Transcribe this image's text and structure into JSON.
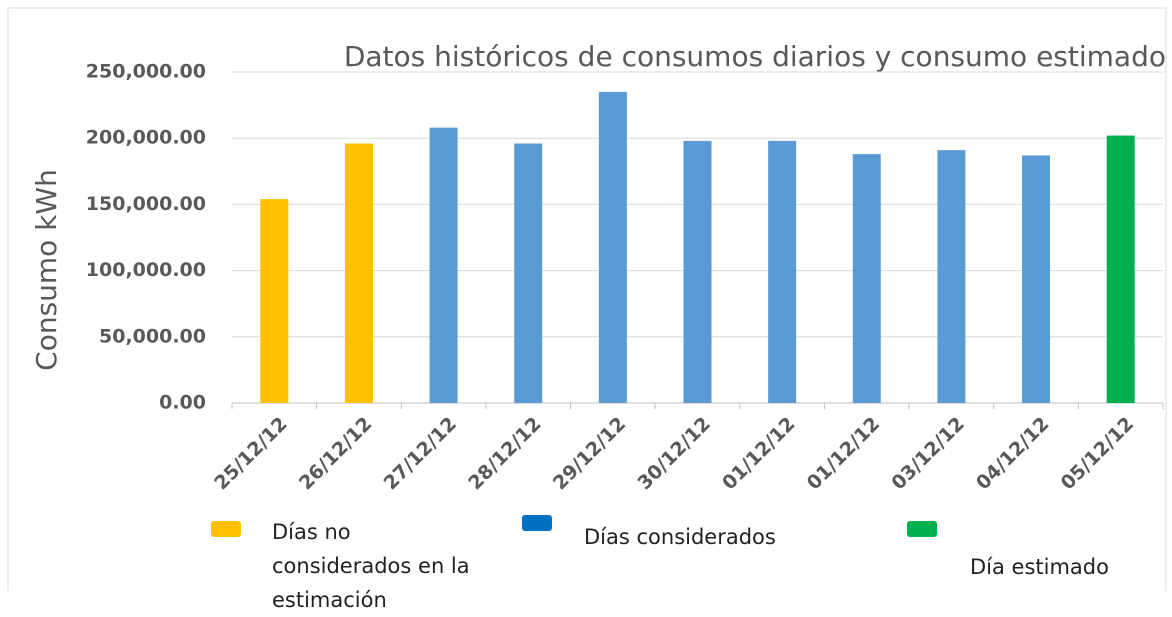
{
  "chart_data": {
    "type": "bar",
    "title": "Datos históricos de consumos diarios y consumo estimado",
    "ylabel": "Consumo  kWh",
    "categories": [
      "25/12/12",
      "26/12/12",
      "27/12/12",
      "28/12/12",
      "29/12/12",
      "30/12/12",
      "01/12/12",
      "01/12/12",
      "03/12/12",
      "04/12/12",
      "05/12/12"
    ],
    "series": [
      {
        "name": "Días no considerados en la estimación",
        "color": "#FFC000",
        "legend_color": "#FFC000",
        "values": [
          154000,
          196000,
          null,
          null,
          null,
          null,
          null,
          null,
          null,
          null,
          null
        ]
      },
      {
        "name": "Días considerados",
        "color": "#5B9BD5",
        "legend_color": "#0070C0",
        "values": [
          null,
          null,
          208000,
          196000,
          235000,
          198000,
          198000,
          188000,
          191000,
          187000,
          null
        ]
      },
      {
        "name": "Día estimado",
        "color": "#00B050",
        "legend_color": "#00B050",
        "values": [
          null,
          null,
          null,
          null,
          null,
          null,
          null,
          null,
          null,
          null,
          202000
        ]
      }
    ],
    "ylim": [
      0,
      250000
    ],
    "yticks": [
      {
        "value": 0,
        "label": "0.00"
      },
      {
        "value": 50000,
        "label": "50,000.00"
      },
      {
        "value": 100000,
        "label": "100,000.00"
      },
      {
        "value": 150000,
        "label": "150,000.00"
      },
      {
        "value": 200000,
        "label": "200,000.00"
      },
      {
        "value": 250000,
        "label": "250,000.00"
      }
    ],
    "grid": true
  }
}
